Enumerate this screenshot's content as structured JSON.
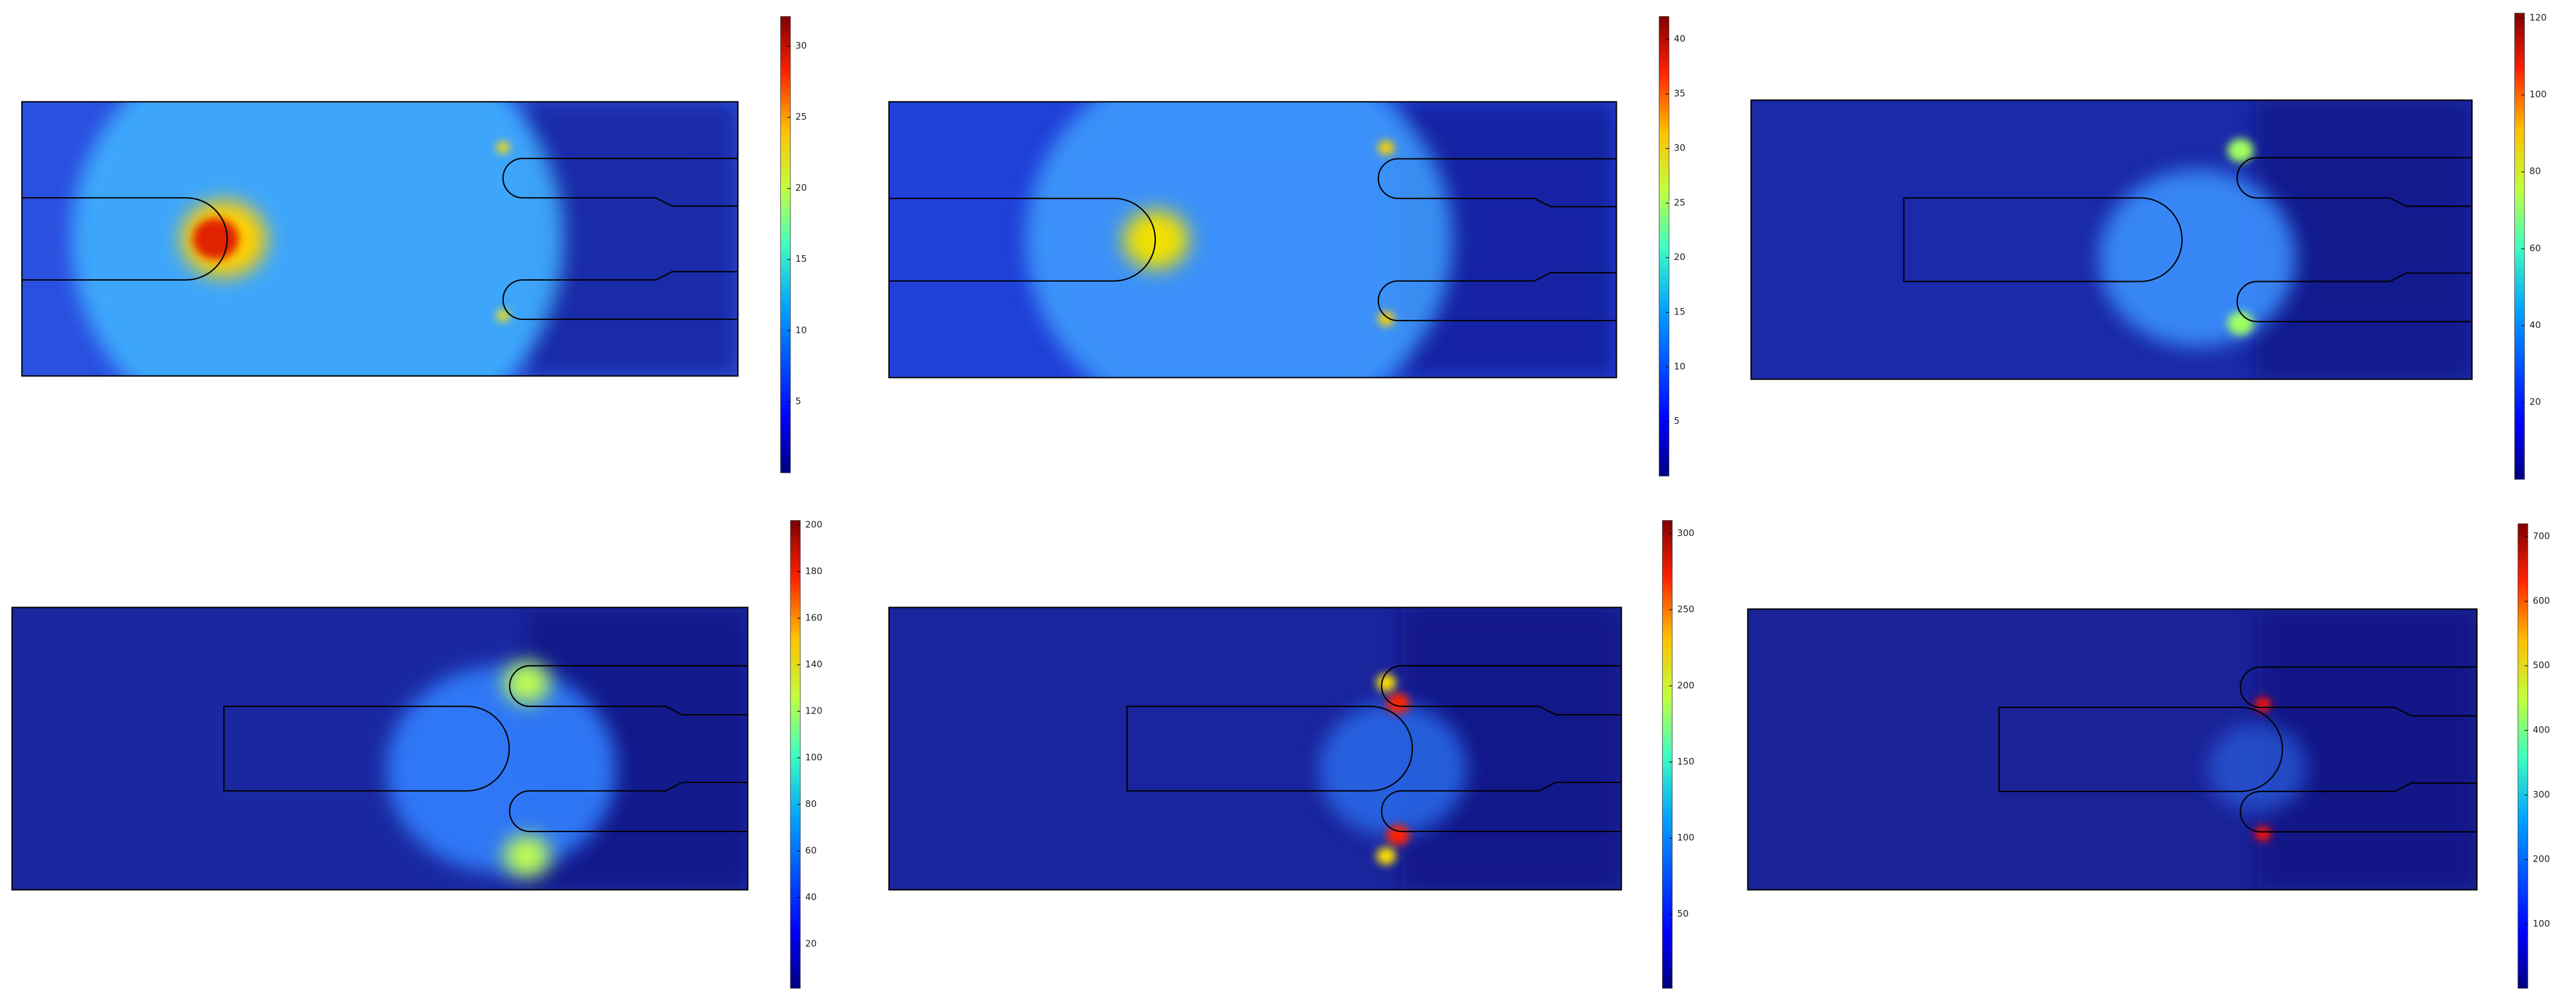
{
  "panels": [
    {
      "colorbar": {
        "range": [
          0,
          32.1
        ],
        "ticks": [
          5,
          10,
          15,
          20,
          25,
          30
        ]
      }
    },
    {
      "colorbar": {
        "range": [
          0,
          42.1
        ],
        "ticks": [
          5,
          10,
          15,
          20,
          25,
          30,
          35,
          40
        ]
      }
    },
    {
      "colorbar": {
        "range": [
          0,
          121.3
        ],
        "ticks": [
          20,
          40,
          60,
          80,
          100,
          120
        ]
      }
    },
    {
      "colorbar": {
        "range": [
          1,
          202
        ],
        "ticks": [
          20,
          40,
          60,
          80,
          100,
          120,
          140,
          160,
          180,
          200
        ]
      }
    },
    {
      "colorbar": {
        "range": [
          1.5,
          308.6
        ],
        "ticks": [
          50,
          100,
          150,
          200,
          250,
          300
        ]
      }
    },
    {
      "colorbar": {
        "range": [
          0.8,
          720
        ],
        "ticks": [
          100,
          200,
          300,
          400,
          500,
          600,
          700
        ]
      }
    }
  ]
}
